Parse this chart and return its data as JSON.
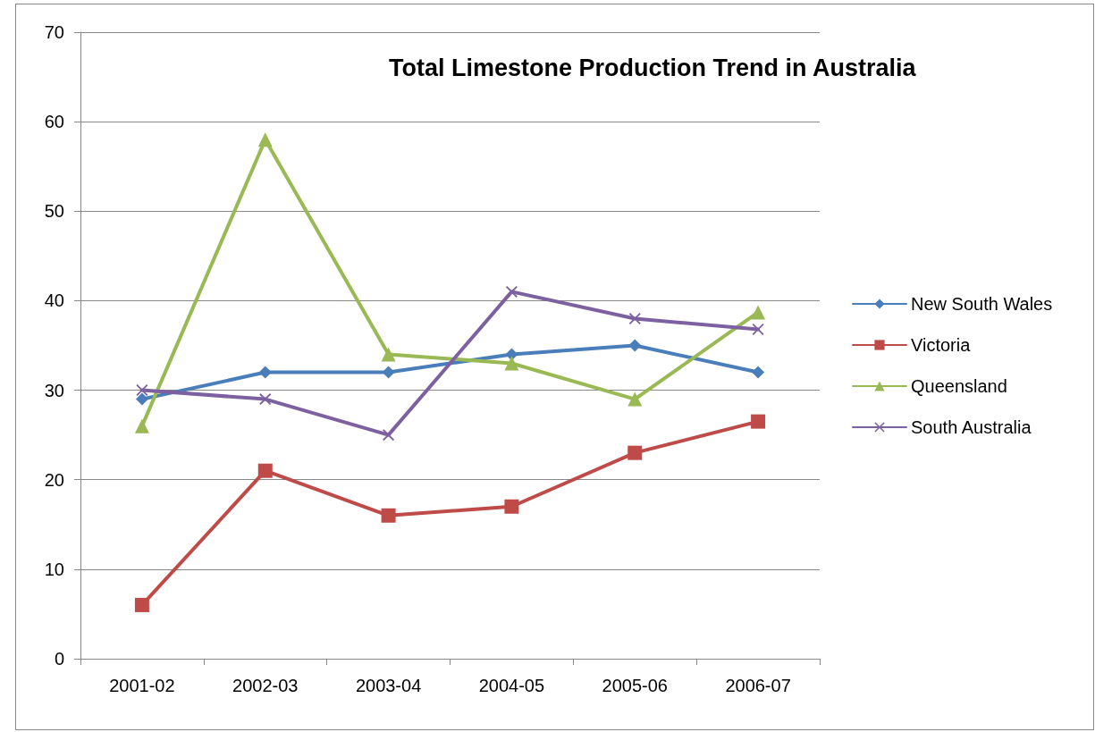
{
  "chart_data": {
    "type": "line",
    "title": "Total Limestone Production Trend in Australia",
    "categories": [
      "2001-02",
      "2002-03",
      "2003-04",
      "2004-05",
      "2005-06",
      "2006-07"
    ],
    "series": [
      {
        "name": "New South Wales",
        "color": "#4a7ebb",
        "marker": "diamond",
        "values": [
          29,
          32,
          32,
          34,
          35,
          32
        ]
      },
      {
        "name": "Victoria",
        "color": "#be4b48",
        "marker": "square",
        "values": [
          6,
          21,
          16,
          17,
          23,
          26.5
        ]
      },
      {
        "name": "Queensland",
        "color": "#98b954",
        "marker": "triangle",
        "values": [
          26,
          58,
          34,
          33,
          29,
          38.7
        ]
      },
      {
        "name": "South Australia",
        "color": "#7d60a0",
        "marker": "cross",
        "values": [
          30,
          29,
          25,
          41,
          38,
          36.8
        ]
      }
    ],
    "ylim": [
      0,
      70
    ],
    "yticks": [
      0,
      10,
      20,
      30,
      40,
      50,
      60,
      70
    ],
    "grid": "y",
    "legend": "right",
    "line_style": "solid"
  }
}
